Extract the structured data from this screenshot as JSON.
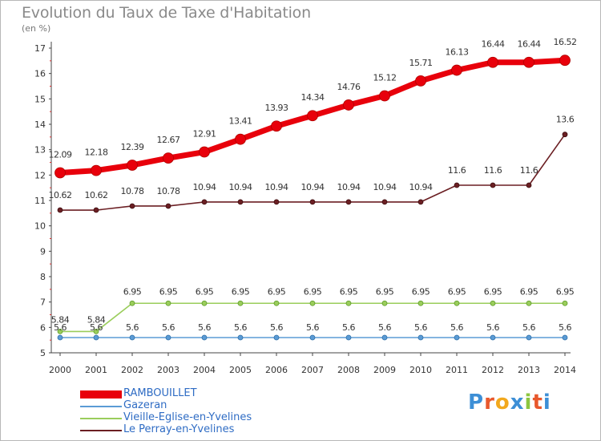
{
  "title": "Evolution du Taux de Taxe d'Habitation",
  "unit_label": "(en %)",
  "brand": "Proxiti",
  "chart_data": {
    "type": "line",
    "ylim": [
      5,
      17
    ],
    "yticks": [
      5,
      6,
      7,
      8,
      9,
      10,
      11,
      12,
      13,
      14,
      15,
      16,
      17
    ],
    "x": [
      "2000",
      "2001",
      "2002",
      "2003",
      "2004",
      "2005",
      "2006",
      "2007",
      "2008",
      "2009",
      "2010",
      "2011",
      "2012",
      "2013",
      "2014"
    ],
    "legend_position": "bottom-left",
    "series": [
      {
        "name": "RAMBOUILLET",
        "color": "#e8000b",
        "values": [
          12.09,
          12.18,
          12.39,
          12.67,
          12.91,
          13.41,
          13.93,
          14.34,
          14.76,
          15.12,
          15.71,
          16.13,
          16.44,
          16.44,
          16.52
        ],
        "labels": [
          "12.09",
          "12.18",
          "12.39",
          "12.67",
          "12.91",
          "13.41",
          "13.93",
          "14.34",
          "14.76",
          "15.12",
          "15.71",
          "16.13",
          "16.44",
          "16.44",
          "16.52"
        ]
      },
      {
        "name": "Gazeran",
        "color": "#5b9bd5",
        "values": [
          5.6,
          5.6,
          5.6,
          5.6,
          5.6,
          5.6,
          5.6,
          5.6,
          5.6,
          5.6,
          5.6,
          5.6,
          5.6,
          5.6,
          5.6
        ],
        "labels": [
          "5.6",
          "5.6",
          "5.6",
          "5.6",
          "5.6",
          "5.6",
          "5.6",
          "5.6",
          "5.6",
          "5.6",
          "5.6",
          "5.6",
          "5.6",
          "5.6",
          "5.6"
        ]
      },
      {
        "name": "Vieille-Eglise-en-Yvelines",
        "color": "#9acd5b",
        "values": [
          5.84,
          5.84,
          6.95,
          6.95,
          6.95,
          6.95,
          6.95,
          6.95,
          6.95,
          6.95,
          6.95,
          6.95,
          6.95,
          6.95,
          6.95
        ],
        "labels": [
          "5.84",
          "5.84",
          "6.95",
          "6.95",
          "6.95",
          "6.95",
          "6.95",
          "6.95",
          "6.95",
          "6.95",
          "6.95",
          "6.95",
          "6.95",
          "6.95",
          "6.95"
        ]
      },
      {
        "name": "Le Perray-en-Yvelines",
        "color": "#6b1f23",
        "values": [
          10.62,
          10.62,
          10.78,
          10.78,
          10.94,
          10.94,
          10.94,
          10.94,
          10.94,
          10.94,
          10.94,
          11.6,
          11.6,
          11.6,
          13.6
        ],
        "labels": [
          "10.62",
          "10.62",
          "10.78",
          "10.78",
          "10.94",
          "10.94",
          "10.94",
          "10.94",
          "10.94",
          "10.94",
          "10.94",
          "11.6",
          "11.6",
          "11.6",
          "13.6"
        ]
      }
    ]
  }
}
